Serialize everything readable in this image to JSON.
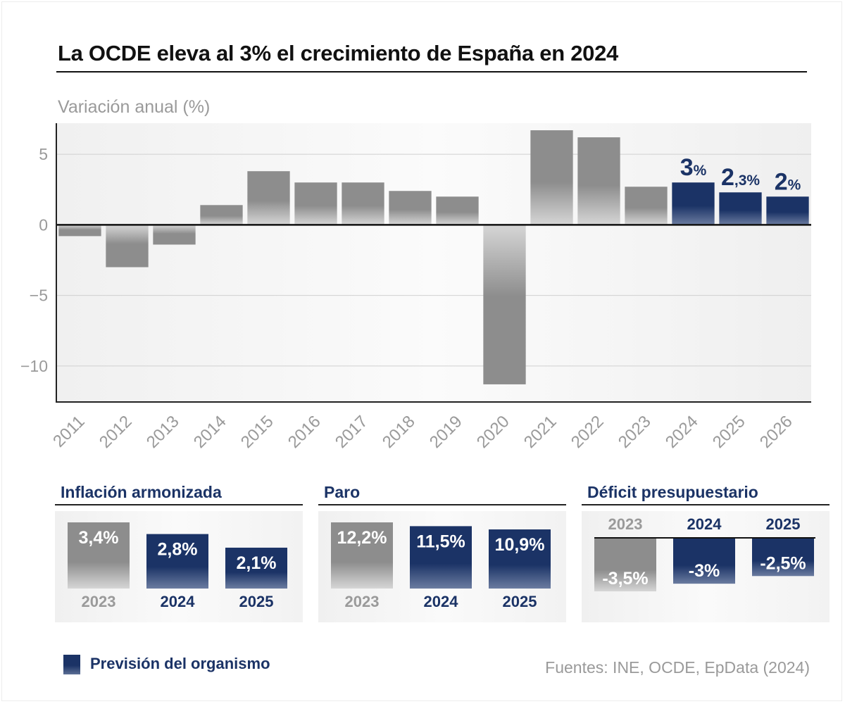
{
  "title": "La OCDE eleva al 3% el crecimiento de España en 2024",
  "colors": {
    "historical": "#8d8d8d",
    "forecast": "#1b3366",
    "grid": "#d0d0d0",
    "axis_text": "#9a9a9a"
  },
  "chart_data": [
    {
      "type": "bar",
      "ylabel": "Variación anual (%)",
      "categories": [
        "2011",
        "2012",
        "2013",
        "2014",
        "2015",
        "2016",
        "2017",
        "2018",
        "2019",
        "2020",
        "2021",
        "2022",
        "2023",
        "2024",
        "2025",
        "2026"
      ],
      "values": [
        -0.8,
        -3.0,
        -1.4,
        1.4,
        3.8,
        3.0,
        3.0,
        2.4,
        2.0,
        -11.3,
        6.7,
        6.2,
        2.7,
        3.0,
        2.3,
        2.0
      ],
      "forecast": [
        false,
        false,
        false,
        false,
        false,
        false,
        false,
        false,
        false,
        false,
        false,
        false,
        false,
        true,
        true,
        true
      ],
      "data_labels": [
        {
          "category": "2024",
          "number": "3",
          "unit": "%"
        },
        {
          "category": "2025",
          "number": "2",
          "unit": ",3%"
        },
        {
          "category": "2026",
          "number": "2",
          "unit": "%"
        }
      ],
      "ylim": [
        -12.5,
        7.2
      ],
      "yticks": [
        5,
        0,
        -5,
        -10
      ],
      "ytick_labels": [
        "5",
        "0",
        "−5",
        "−10"
      ],
      "grid": true
    },
    {
      "type": "bar",
      "title": "Inflación armonizada",
      "categories": [
        "2023",
        "2024",
        "2025"
      ],
      "values": [
        3.4,
        2.8,
        2.1
      ],
      "labels": [
        "3,4%",
        "2,8%",
        "2,1%"
      ],
      "forecast": [
        false,
        true,
        true
      ]
    },
    {
      "type": "bar",
      "title": "Paro",
      "categories": [
        "2023",
        "2024",
        "2025"
      ],
      "values": [
        12.2,
        11.5,
        10.9
      ],
      "labels": [
        "12,2%",
        "11,5%",
        "10,9%"
      ],
      "forecast": [
        false,
        true,
        true
      ]
    },
    {
      "type": "bar",
      "title": "Déficit presupuestario",
      "categories": [
        "2023",
        "2024",
        "2025"
      ],
      "values": [
        -3.5,
        -3.0,
        -2.5
      ],
      "labels": [
        "-3,5%",
        "-3%",
        "-2,5%"
      ],
      "forecast": [
        false,
        true,
        true
      ]
    }
  ],
  "legend": {
    "label": "Previsión del organismo"
  },
  "source": "Fuentes: INE, OCDE, EpData (2024)"
}
